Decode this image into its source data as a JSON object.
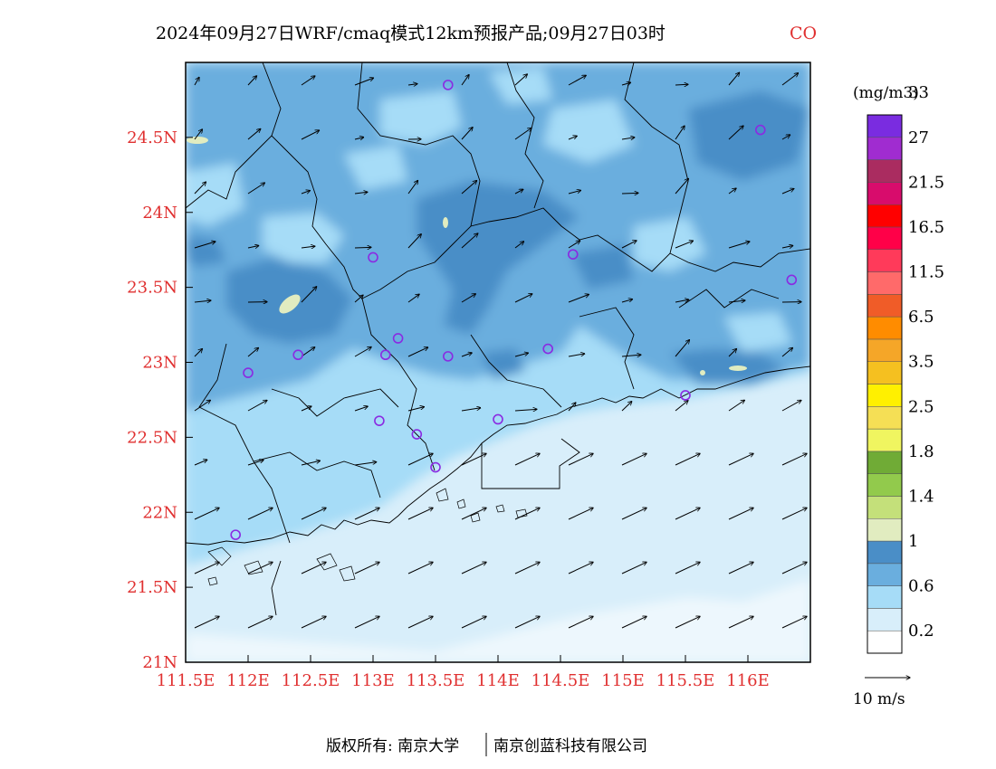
{
  "chart_data": {
    "type": "heatmap",
    "title": "2024年09月27日WRF/cmaq模式12km预报产品;09月27日03时",
    "variable": "CO",
    "x_tick_labels": [
      "111.5E",
      "112E",
      "112.5E",
      "113E",
      "113.5E",
      "114E",
      "114.5E",
      "115E",
      "115.5E",
      "116E"
    ],
    "y_tick_labels": [
      "21N",
      "21.5N",
      "22N",
      "22.5N",
      "23N",
      "23.5N",
      "24N",
      "24.5N"
    ],
    "x_ticks": [
      111.5,
      112,
      112.5,
      113,
      113.5,
      114,
      114.5,
      115,
      115.5,
      116
    ],
    "y_ticks": [
      21,
      21.5,
      22,
      22.5,
      23,
      23.5,
      24,
      24.5
    ],
    "xlim": [
      111.5,
      116.5
    ],
    "ylim": [
      21,
      25
    ],
    "colorbar": {
      "unit": "(mg/m3)",
      "labels": [
        "0.2",
        "0.6",
        "1",
        "1.4",
        "1.8",
        "2.5",
        "3.5",
        "6.5",
        "11.5",
        "16.5",
        "21.5",
        "27",
        "33"
      ],
      "colors": [
        "#ffffff",
        "#d8eefa",
        "#a6dcf7",
        "#6aaede",
        "#4a8ec7",
        "#e1ecc0",
        "#c4e07a",
        "#92ca4c",
        "#70ab36",
        "#f0f560",
        "#f5df55",
        "#fff000",
        "#f5c020",
        "#f5a628",
        "#ff8c00",
        "#f05c28",
        "#ff6a6a",
        "#ff3a5a",
        "#ff0048",
        "#ff0000",
        "#d80c6c",
        "#aa2c60",
        "#a02cd0",
        "#7a2ce0"
      ]
    },
    "wind_reference": "10 m/s",
    "stations": [
      {
        "lon": 113.6,
        "lat": 24.85
      },
      {
        "lon": 116.1,
        "lat": 24.55
      },
      {
        "lon": 114.6,
        "lat": 23.72
      },
      {
        "lon": 113.0,
        "lat": 23.7
      },
      {
        "lon": 116.35,
        "lat": 23.55
      },
      {
        "lon": 112.4,
        "lat": 23.05
      },
      {
        "lon": 113.1,
        "lat": 23.05
      },
      {
        "lon": 113.2,
        "lat": 23.16
      },
      {
        "lon": 113.6,
        "lat": 23.04
      },
      {
        "lon": 114.4,
        "lat": 23.09
      },
      {
        "lon": 112.0,
        "lat": 22.93
      },
      {
        "lon": 115.5,
        "lat": 22.78
      },
      {
        "lon": 113.05,
        "lat": 22.61
      },
      {
        "lon": 113.35,
        "lat": 22.52
      },
      {
        "lon": 114.0,
        "lat": 22.62
      },
      {
        "lon": 113.5,
        "lat": 22.3
      },
      {
        "lon": 111.9,
        "lat": 21.85
      }
    ]
  },
  "footer": {
    "copyright": "版权所有: 南京大学",
    "partner": "南京创蓝科技有限公司"
  }
}
